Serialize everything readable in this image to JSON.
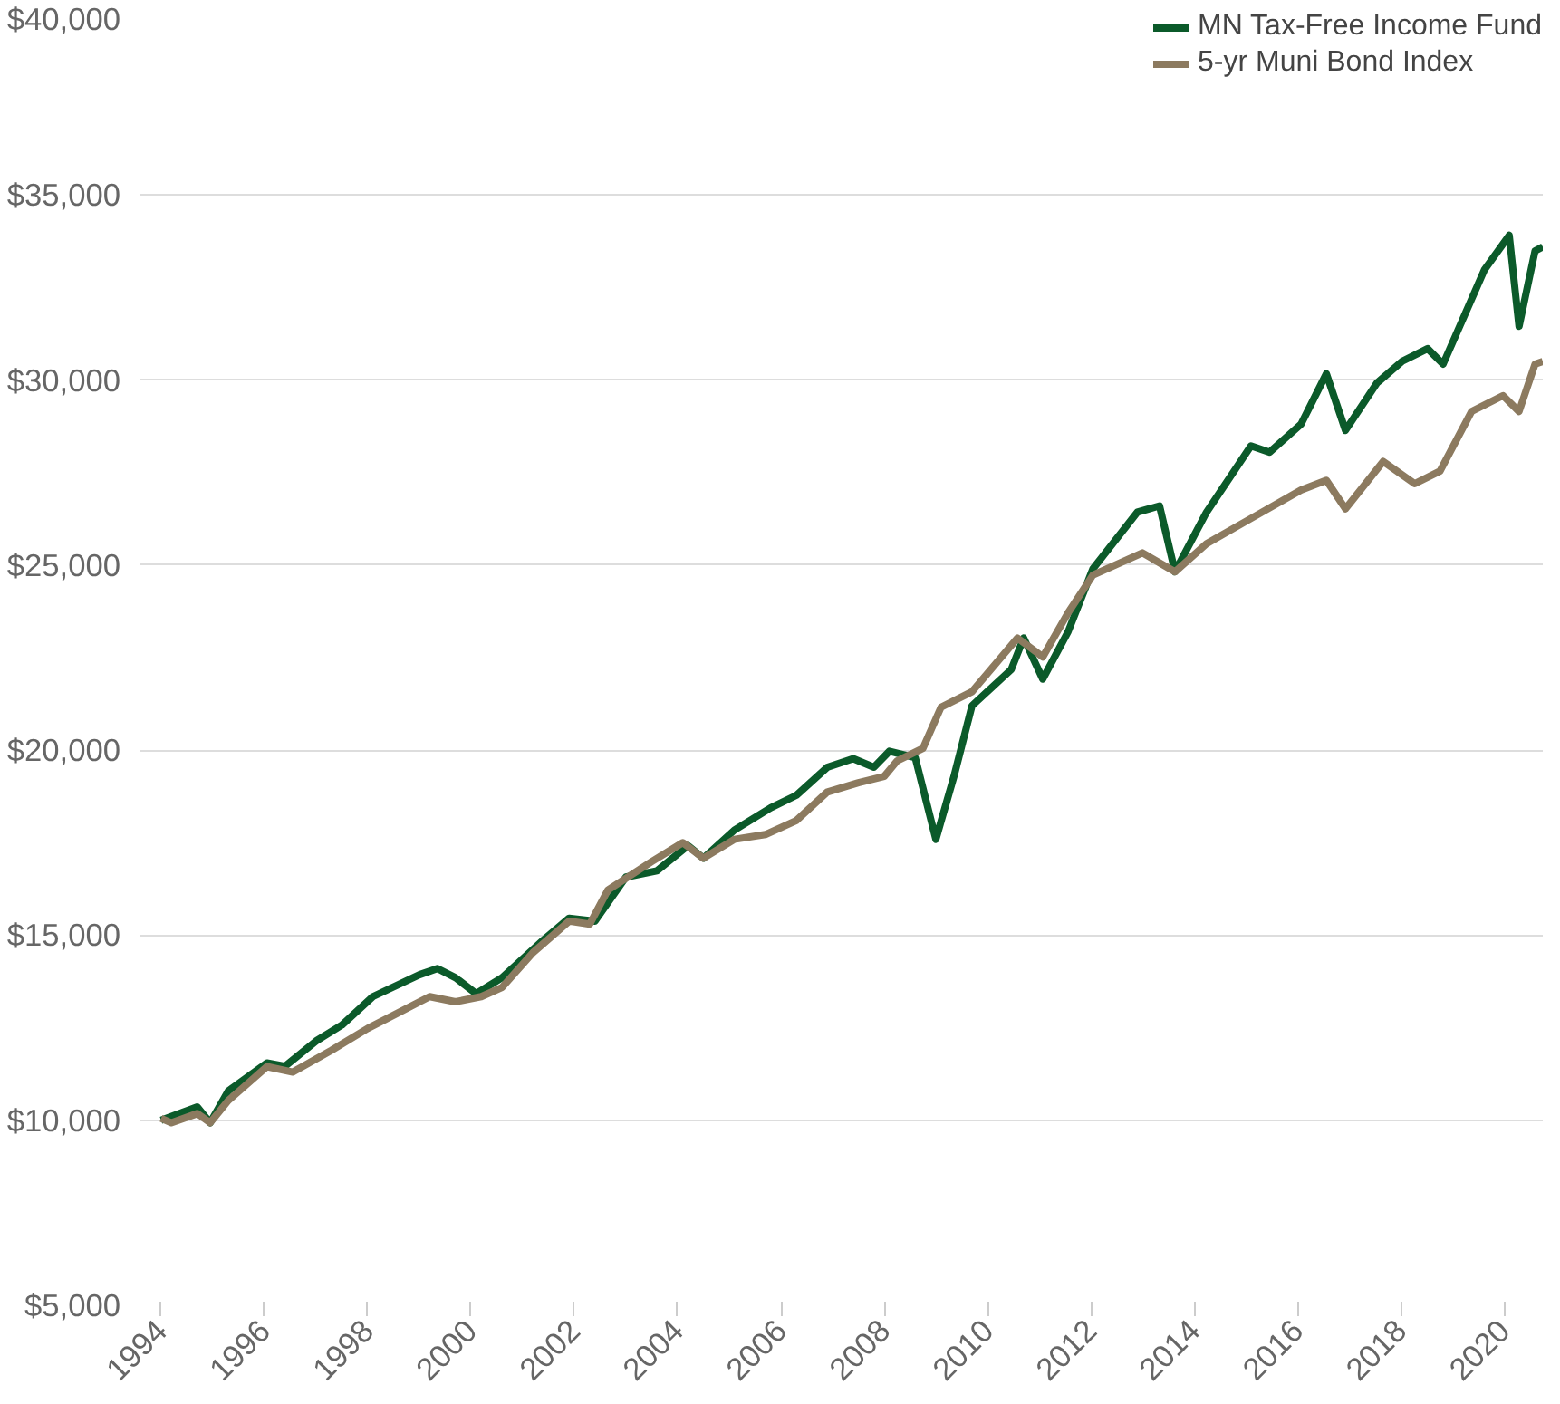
{
  "chart_data": {
    "type": "line",
    "xlim": [
      1993.6,
      2020.75
    ],
    "xticks": [
      1994,
      1996,
      1998,
      2000,
      2002,
      2004,
      2006,
      2008,
      2010,
      2012,
      2014,
      2016,
      2018,
      2020
    ],
    "ylim": [
      5000,
      40000
    ],
    "yticks": [
      {
        "value": 5000,
        "label": "$5,000"
      },
      {
        "value": 10000,
        "label": "$10,000"
      },
      {
        "value": 15000,
        "label": "$15,000"
      },
      {
        "value": 20000,
        "label": "$20,000"
      },
      {
        "value": 25000,
        "label": "$25,000"
      },
      {
        "value": 30000,
        "label": "$30,000"
      },
      {
        "value": 35000,
        "label": "$35,000"
      },
      {
        "value": 40000,
        "label": "$40,000"
      }
    ],
    "grid": "y",
    "legend": "top",
    "line_style": "solid",
    "series": [
      {
        "name": "MN Tax-Free Income Fund",
        "color": "#0b5a2a",
        "x": [
          1994.0,
          1994.7,
          1994.95,
          1995.3,
          1996.05,
          1996.4,
          1997.0,
          1997.5,
          1998.1,
          1999.0,
          1999.35,
          1999.7,
          2000.1,
          2000.6,
          2001.4,
          2001.9,
          2002.4,
          2003.0,
          2003.6,
          2004.2,
          2004.5,
          2005.1,
          2005.8,
          2006.3,
          2006.9,
          2007.4,
          2007.8,
          2008.1,
          2008.6,
          2009.0,
          2009.35,
          2009.7,
          2010.46,
          2010.7,
          2011.07,
          2011.56,
          2012.04,
          2012.9,
          2013.33,
          2013.63,
          2014.24,
          2015.1,
          2015.46,
          2016.07,
          2016.56,
          2016.93,
          2017.54,
          2018.03,
          2018.52,
          2018.82,
          2019.62,
          2020.1,
          2020.29,
          2020.6,
          2020.75
        ],
        "values": [
          10000,
          10360,
          9930,
          10790,
          11550,
          11460,
          12140,
          12570,
          13340,
          13930,
          14100,
          13850,
          13420,
          13850,
          14870,
          15460,
          15380,
          16570,
          16740,
          17420,
          17080,
          17840,
          18440,
          18780,
          19540,
          19770,
          19540,
          19970,
          19800,
          17590,
          19290,
          21200,
          22180,
          23030,
          21920,
          23200,
          24900,
          26430,
          26600,
          24820,
          26430,
          28220,
          28050,
          28810,
          30170,
          28640,
          29920,
          30510,
          30850,
          30430,
          32980,
          33910,
          31450,
          33490,
          33600
        ]
      },
      {
        "name": "5-yr Muni Bond Index",
        "color": "#8c7a5f",
        "x": [
          1994.0,
          1994.2,
          1994.7,
          1994.95,
          1995.3,
          1996.05,
          1996.55,
          1997.3,
          1998.0,
          1998.6,
          1999.2,
          1999.7,
          2000.2,
          2000.6,
          2001.2,
          2001.9,
          2002.3,
          2002.65,
          2003.5,
          2004.1,
          2004.5,
          2005.1,
          2005.7,
          2006.3,
          2006.9,
          2007.5,
          2008.0,
          2008.25,
          2008.75,
          2009.1,
          2009.7,
          2010.58,
          2011.07,
          2011.56,
          2012.04,
          2013.0,
          2013.63,
          2014.24,
          2015.1,
          2016.07,
          2016.56,
          2016.93,
          2017.66,
          2018.27,
          2018.76,
          2019.37,
          2019.98,
          2020.29,
          2020.6,
          2020.75
        ],
        "values": [
          10050,
          9930,
          10180,
          9930,
          10530,
          11450,
          11300,
          11890,
          12480,
          12910,
          13340,
          13200,
          13340,
          13590,
          14530,
          15380,
          15300,
          16220,
          16990,
          17500,
          17080,
          17590,
          17720,
          18100,
          18870,
          19120,
          19290,
          19710,
          20050,
          21160,
          21580,
          23030,
          22520,
          23710,
          24730,
          25330,
          24820,
          25580,
          26260,
          27030,
          27290,
          26520,
          27800,
          27200,
          27540,
          29150,
          29580,
          29150,
          30430,
          30500
        ]
      }
    ]
  }
}
